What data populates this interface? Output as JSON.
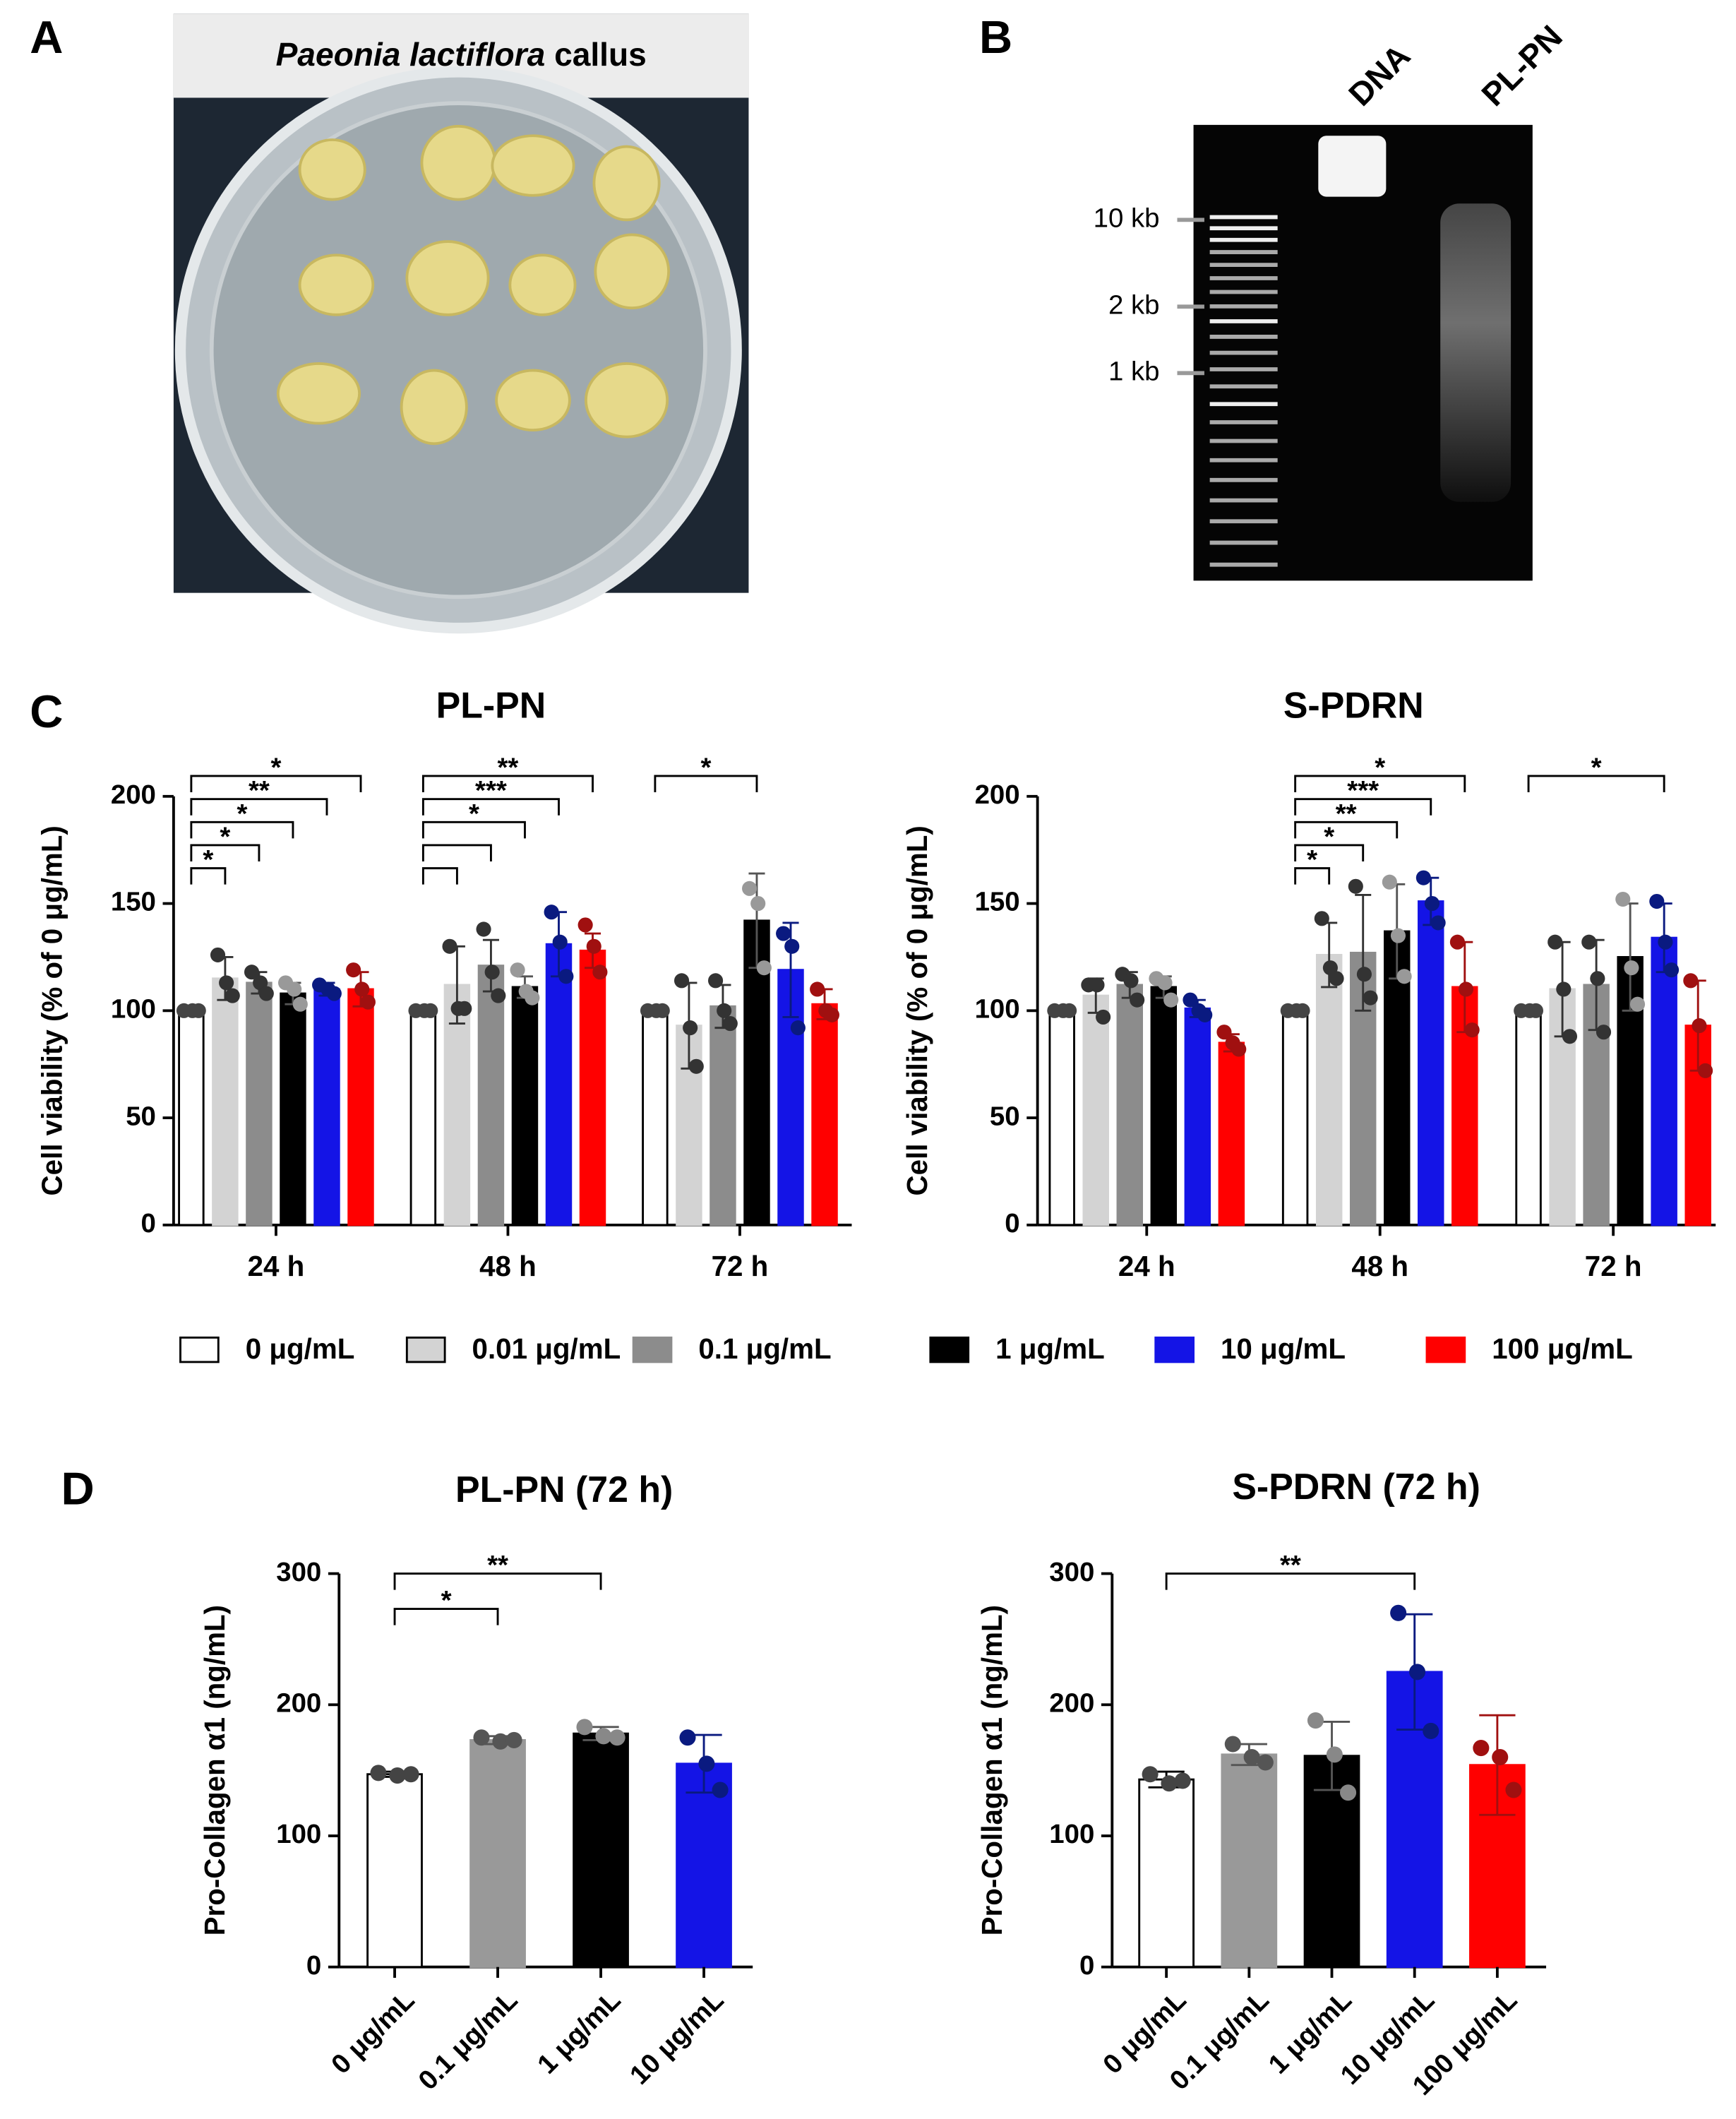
{
  "panel_labels": [
    "A",
    "B",
    "C",
    "D"
  ],
  "photo": {
    "title_italic": "Paeonia lactiflora",
    "title_rest": "callus"
  },
  "gel": {
    "lanes": [
      "DNA",
      "PL-PN"
    ],
    "markers": [
      "10 kb",
      "2 kb",
      "1 kb"
    ]
  },
  "chart_data": [
    {
      "type": "bar",
      "title": "PL-PN",
      "ylabel": "Cell viability (% of 0 μg/mL)",
      "categories": [
        "24 h",
        "48 h",
        "72 h"
      ],
      "ylim": [
        0,
        200
      ],
      "yticks": [
        0,
        50,
        100,
        150,
        200
      ],
      "series": [
        {
          "name": "0 μg/mL",
          "color": "#ffffff",
          "point_color": "#444444",
          "values": [
            100,
            100,
            100
          ],
          "errors": [
            0,
            0,
            0
          ],
          "points": [
            [
              100,
              100,
              100
            ],
            [
              100,
              100,
              100
            ],
            [
              100,
              100,
              100
            ]
          ]
        },
        {
          "name": "0.01 μg/mL",
          "color": "#d3d3d3",
          "point_color": "#333333",
          "values": [
            115,
            112,
            93
          ],
          "errors": [
            10,
            18,
            20
          ],
          "points": [
            [
              126,
              113,
              107
            ],
            [
              130,
              101,
              101
            ],
            [
              114,
              92,
              74
            ]
          ]
        },
        {
          "name": "0.1 μg/mL",
          "color": "#8c8c8c",
          "point_color": "#333333",
          "values": [
            113,
            121,
            102
          ],
          "errors": [
            5,
            12,
            10
          ],
          "points": [
            [
              118,
              113,
              108
            ],
            [
              138,
              118,
              107
            ],
            [
              114,
              100,
              94
            ]
          ]
        },
        {
          "name": "1 μg/mL",
          "color": "#000000",
          "point_color": "#999999",
          "values": [
            108,
            111,
            142
          ],
          "errors": [
            5,
            5,
            22
          ],
          "points": [
            [
              113,
              110,
              103
            ],
            [
              119,
              109,
              106
            ],
            [
              157,
              150,
              120
            ]
          ]
        },
        {
          "name": "10 μg/mL",
          "color": "#1414e6",
          "point_color": "#0a1a80",
          "values": [
            110,
            131,
            119
          ],
          "errors": [
            3,
            15,
            22
          ],
          "points": [
            [
              112,
              110,
              108
            ],
            [
              146,
              132,
              116
            ],
            [
              136,
              130,
              92
            ]
          ]
        },
        {
          "name": "100 μg/mL",
          "color": "#ff0000",
          "point_color": "#a01010",
          "values": [
            110,
            128,
            103
          ],
          "errors": [
            8,
            8,
            7
          ],
          "points": [
            [
              119,
              110,
              104
            ],
            [
              140,
              130,
              118
            ],
            [
              110,
              100,
              98
            ]
          ]
        }
      ],
      "brackets": [
        {
          "group": 0,
          "from": 0,
          "to": 1,
          "label": "*"
        },
        {
          "group": 0,
          "from": 0,
          "to": 2,
          "label": "*"
        },
        {
          "group": 0,
          "from": 0,
          "to": 3,
          "label": "*"
        },
        {
          "group": 0,
          "from": 0,
          "to": 4,
          "label": "**"
        },
        {
          "group": 0,
          "from": 0,
          "to": 5,
          "label": "*"
        },
        {
          "group": 1,
          "from": 0,
          "to": 1
        },
        {
          "group": 1,
          "from": 0,
          "to": 2
        },
        {
          "group": 1,
          "from": 0,
          "to": 3,
          "label": "*"
        },
        {
          "group": 1,
          "from": 0,
          "to": 4,
          "label": "***"
        },
        {
          "group": 1,
          "from": 0,
          "to": 5,
          "label": "**"
        },
        {
          "group": 2,
          "from": 0,
          "to": 3,
          "label": "*"
        }
      ]
    },
    {
      "type": "bar",
      "title": "S-PDRN",
      "ylabel": "Cell viability (% of 0 μg/mL)",
      "categories": [
        "24 h",
        "48 h",
        "72 h"
      ],
      "ylim": [
        0,
        200
      ],
      "yticks": [
        0,
        50,
        100,
        150,
        200
      ],
      "series": [
        {
          "color": "#ffffff",
          "point_color": "#444444",
          "values": [
            100,
            100,
            100
          ],
          "errors": [
            0,
            0,
            0
          ],
          "points": [
            [
              100,
              100,
              100
            ],
            [
              100,
              100,
              100
            ],
            [
              100,
              100,
              100
            ]
          ]
        },
        {
          "color": "#d3d3d3",
          "point_color": "#333333",
          "values": [
            107,
            126,
            110
          ],
          "errors": [
            8,
            15,
            22
          ],
          "points": [
            [
              112,
              112,
              97
            ],
            [
              143,
              120,
              115
            ],
            [
              132,
              110,
              88
            ]
          ]
        },
        {
          "color": "#8c8c8c",
          "point_color": "#333333",
          "values": [
            112,
            127,
            112
          ],
          "errors": [
            6,
            27,
            21
          ],
          "points": [
            [
              117,
              114,
              105
            ],
            [
              158,
              117,
              106
            ],
            [
              132,
              115,
              90
            ]
          ]
        },
        {
          "color": "#000000",
          "point_color": "#999999",
          "values": [
            111,
            137,
            125
          ],
          "errors": [
            5,
            22,
            25
          ],
          "points": [
            [
              115,
              113,
              105
            ],
            [
              160,
              135,
              116
            ],
            [
              152,
              120,
              103
            ]
          ]
        },
        {
          "color": "#1414e6",
          "point_color": "#0a1a80",
          "values": [
            101,
            151,
            134
          ],
          "errors": [
            4,
            11,
            16
          ],
          "points": [
            [
              105,
              100,
              98
            ],
            [
              162,
              150,
              141
            ],
            [
              151,
              132,
              119
            ]
          ]
        },
        {
          "color": "#ff0000",
          "point_color": "#a01010",
          "values": [
            85,
            111,
            93
          ],
          "errors": [
            4,
            21,
            21
          ],
          "points": [
            [
              90,
              85,
              82
            ],
            [
              132,
              110,
              91
            ],
            [
              114,
              93,
              72
            ]
          ]
        }
      ],
      "brackets": [
        {
          "group": 1,
          "from": 0,
          "to": 1,
          "label": "*"
        },
        {
          "group": 1,
          "from": 0,
          "to": 2,
          "label": "*"
        },
        {
          "group": 1,
          "from": 0,
          "to": 3,
          "label": "**"
        },
        {
          "group": 1,
          "from": 0,
          "to": 4,
          "label": "***"
        },
        {
          "group": 1,
          "from": 0,
          "to": 5,
          "label": "*"
        },
        {
          "group": 2,
          "from": 0,
          "to": 4,
          "label": "*"
        }
      ]
    },
    {
      "type": "bar",
      "title": "PL-PN (72 h)",
      "ylabel": "Pro-Collagen α1 (ng/mL)",
      "categories": [
        "0 μg/mL",
        "0.1 μg/mL",
        "1 μg/mL",
        "10 μg/mL"
      ],
      "ylim": [
        0,
        300
      ],
      "yticks": [
        0,
        100,
        200,
        300
      ],
      "values": [
        147,
        173,
        178,
        155
      ],
      "errors": [
        2,
        3,
        5,
        22
      ],
      "points": [
        [
          148,
          146,
          147
        ],
        [
          175,
          172,
          173
        ],
        [
          183,
          176,
          175
        ],
        [
          175,
          155,
          135
        ]
      ],
      "colors": [
        "#ffffff",
        "#999999",
        "#000000",
        "#1414e6"
      ],
      "point_colors": [
        "#444444",
        "#555555",
        "#888888",
        "#0a1a80"
      ],
      "brackets": [
        {
          "from": 0,
          "to": 1,
          "label": "*"
        },
        {
          "from": 0,
          "to": 2,
          "label": "**"
        }
      ]
    },
    {
      "type": "bar",
      "title": "S-PDRN (72 h)",
      "ylabel": "Pro-Collagen α1 (ng/mL)",
      "categories": [
        "0 μg/mL",
        "0.1 μg/mL",
        "1 μg/mL",
        "10 μg/mL",
        "100 μg/mL"
      ],
      "ylim": [
        0,
        300
      ],
      "yticks": [
        0,
        100,
        200,
        300
      ],
      "values": [
        143,
        162,
        161,
        225,
        154
      ],
      "errors": [
        6,
        8,
        26,
        44,
        38
      ],
      "points": [
        [
          147,
          140,
          142
        ],
        [
          170,
          160,
          156
        ],
        [
          188,
          162,
          133
        ],
        [
          270,
          225,
          180
        ],
        [
          167,
          160,
          135
        ]
      ],
      "colors": [
        "#ffffff",
        "#999999",
        "#000000",
        "#1414e6",
        "#ff0000"
      ],
      "point_colors": [
        "#444444",
        "#555555",
        "#888888",
        "#0a1a80",
        "#a01010"
      ],
      "brackets": [
        {
          "from": 0,
          "to": 3,
          "label": "**"
        }
      ]
    }
  ]
}
